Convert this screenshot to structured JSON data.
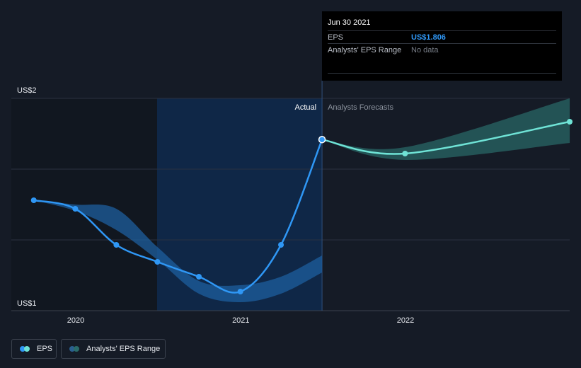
{
  "tooltip": {
    "date": "Jun 30 2021",
    "eps_label": "EPS",
    "eps_value": "US$1.806",
    "range_label": "Analysts' EPS Range",
    "range_value": "No data"
  },
  "regions": {
    "actual_label": "Actual",
    "forecast_label": "Analysts Forecasts"
  },
  "legend": {
    "eps_label": "EPS",
    "range_label": "Analysts' EPS Range"
  },
  "colors": {
    "actual_line": "#2f97f5",
    "forecast_line": "#6fe3d6",
    "actual_band": "#1e5f9e",
    "forecast_band": "#2a6b6a"
  },
  "chart_data": {
    "type": "line",
    "title": "",
    "y_tick_labels": [
      "US$2",
      "US$1"
    ],
    "x_tick_labels": [
      "2020",
      "2021",
      "2022"
    ],
    "ylim": [
      1.0,
      2.0
    ],
    "grid": true,
    "series": [
      {
        "name": "EPS",
        "kind": "actual",
        "points": [
          [
            "2019-09-30",
            1.52
          ],
          [
            "2019-12-31",
            1.48
          ],
          [
            "2020-03-31",
            1.31
          ],
          [
            "2020-06-30",
            1.23
          ],
          [
            "2020-09-30",
            1.16
          ],
          [
            "2020-12-31",
            1.09
          ],
          [
            "2021-03-31",
            1.31
          ],
          [
            "2021-06-30",
            1.806
          ]
        ]
      },
      {
        "name": "EPS",
        "kind": "forecast",
        "points": [
          [
            "2021-06-30",
            1.806
          ],
          [
            "2021-12-31",
            1.74
          ],
          [
            "2022-12-31",
            1.89
          ]
        ]
      }
    ],
    "range_bands": [
      {
        "name": "Analysts' EPS Range",
        "kind": "actual",
        "upper": [
          [
            "2019-09-30",
            1.52
          ],
          [
            "2019-12-31",
            1.5
          ],
          [
            "2020-03-31",
            1.48
          ],
          [
            "2020-06-30",
            1.3
          ],
          [
            "2020-09-30",
            1.14
          ],
          [
            "2020-12-31",
            1.12
          ],
          [
            "2021-03-31",
            1.16
          ],
          [
            "2021-06-30",
            1.26
          ]
        ],
        "lower": [
          [
            "2019-09-30",
            1.52
          ],
          [
            "2019-12-31",
            1.47
          ],
          [
            "2020-03-31",
            1.38
          ],
          [
            "2020-06-30",
            1.24
          ],
          [
            "2020-09-30",
            1.08
          ],
          [
            "2020-12-31",
            1.04
          ],
          [
            "2021-03-31",
            1.08
          ],
          [
            "2021-06-30",
            1.18
          ]
        ]
      },
      {
        "name": "Analysts' EPS Range",
        "kind": "forecast",
        "upper": [
          [
            "2021-06-30",
            1.806
          ],
          [
            "2021-12-31",
            1.77
          ],
          [
            "2022-12-31",
            2.0
          ]
        ],
        "lower": [
          [
            "2021-06-30",
            1.806
          ],
          [
            "2021-12-31",
            1.71
          ],
          [
            "2022-12-31",
            1.79
          ]
        ]
      }
    ],
    "highlight_date": "2021-06-30"
  }
}
